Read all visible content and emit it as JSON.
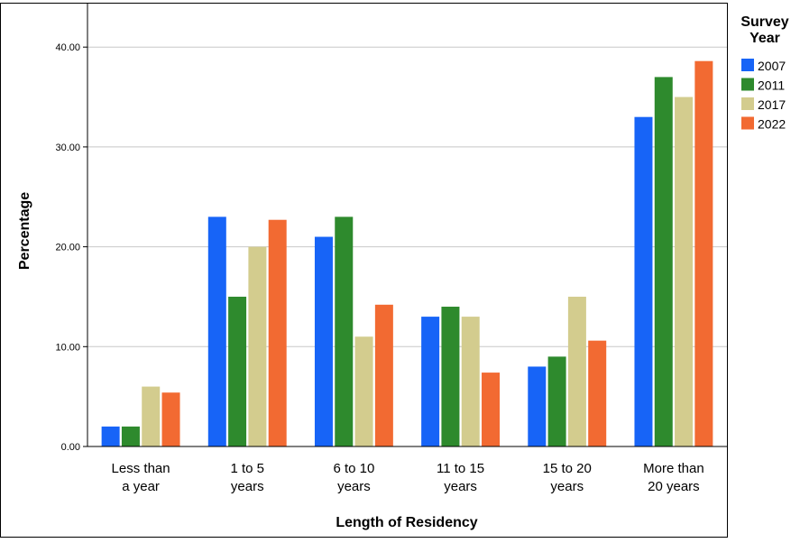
{
  "chart_data": {
    "type": "bar",
    "categories": [
      [
        "Less than",
        "a year"
      ],
      [
        "1 to 5",
        "years"
      ],
      [
        "6 to 10",
        "years"
      ],
      [
        "11 to 15",
        "years"
      ],
      [
        "15 to 20",
        "years"
      ],
      [
        "More than",
        "20 years"
      ]
    ],
    "series": [
      {
        "name": "2007",
        "color": "#1764f7",
        "values": [
          2,
          23,
          21,
          13,
          8,
          33
        ]
      },
      {
        "name": "2011",
        "color": "#2e8a2d",
        "values": [
          2,
          15,
          23,
          14,
          9,
          37
        ]
      },
      {
        "name": "2017",
        "color": "#d3cc8e",
        "values": [
          6,
          20,
          11,
          13,
          15,
          35
        ]
      },
      {
        "name": "2022",
        "color": "#f26a32",
        "values": [
          5.4,
          22.7,
          14.2,
          7.4,
          10.6,
          38.6
        ]
      }
    ],
    "title": "",
    "xlabel": "Length of Residency",
    "ylabel": "Percentage",
    "ylim": [
      0,
      44
    ],
    "yticks": [
      "0.00",
      "10.00",
      "20.00",
      "30.00",
      "40.00"
    ],
    "grid": "horizontal",
    "legend": {
      "title": [
        "Survey",
        "Year"
      ],
      "placement": "right"
    }
  }
}
